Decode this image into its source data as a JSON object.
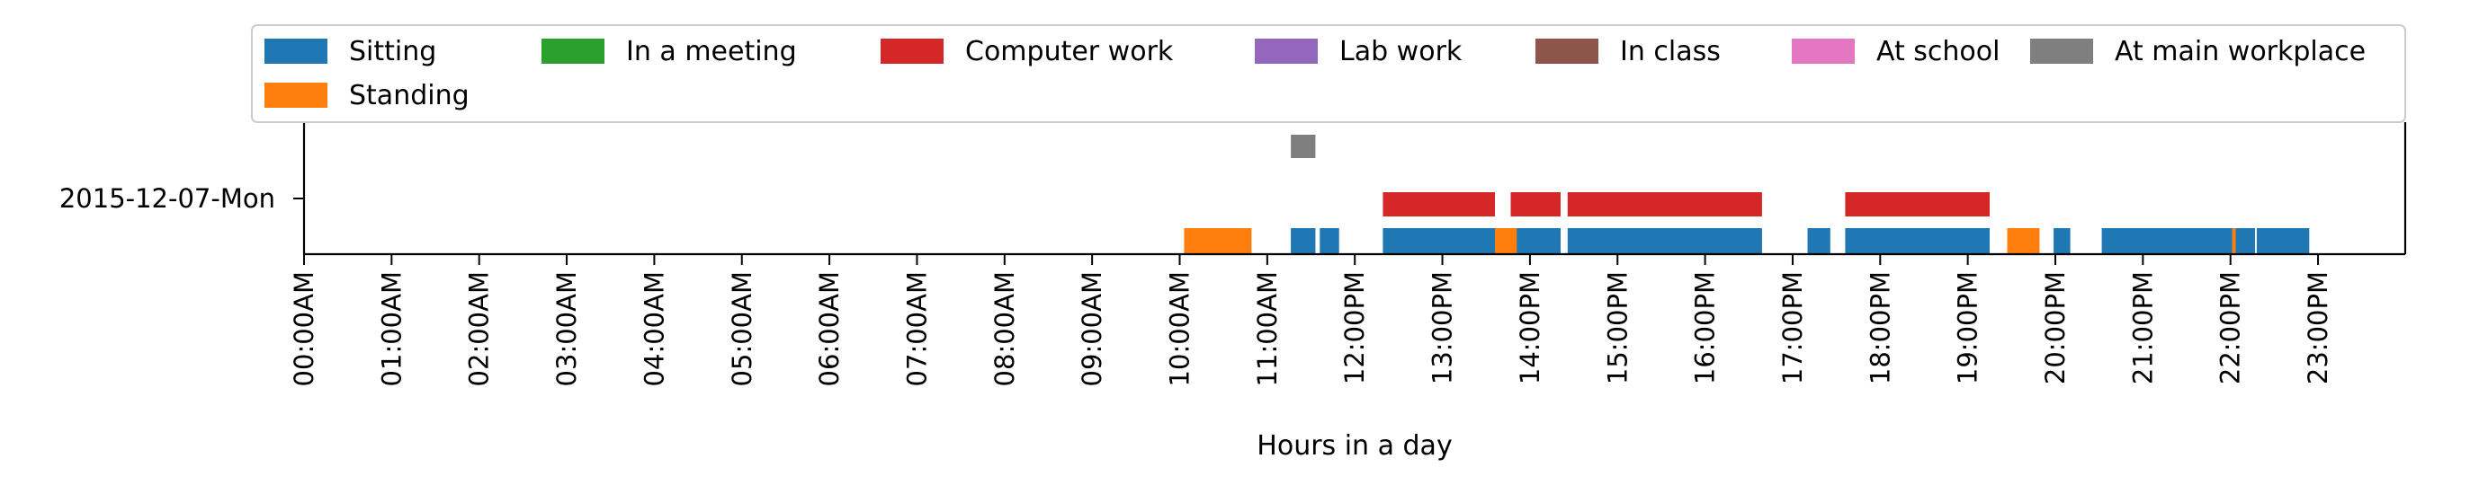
{
  "chart_data": {
    "type": "timeline",
    "title": "",
    "xlabel": "Hours in a day",
    "ylabel": "",
    "xlim": [
      0,
      24
    ],
    "y_category": "2015-12-07-Mon",
    "x_tick_labels": [
      "00:00AM",
      "01:00AM",
      "02:00AM",
      "03:00AM",
      "04:00AM",
      "05:00AM",
      "06:00AM",
      "07:00AM",
      "08:00AM",
      "09:00AM",
      "10:00AM",
      "11:00AM",
      "12:00PM",
      "13:00PM",
      "14:00PM",
      "15:00PM",
      "16:00PM",
      "17:00PM",
      "18:00PM",
      "19:00PM",
      "20:00PM",
      "21:00PM",
      "22:00PM",
      "23:00PM"
    ],
    "legend_placement": "top, 7 columns",
    "series": [
      {
        "name": "Sitting",
        "color": "#1f77b4",
        "lane": 0,
        "intervals": [
          [
            11.27,
            11.55
          ],
          [
            11.6,
            11.82
          ],
          [
            12.32,
            13.6
          ],
          [
            13.78,
            14.35
          ],
          [
            14.43,
            16.65
          ],
          [
            17.17,
            17.43
          ],
          [
            17.6,
            19.25
          ],
          [
            19.98,
            20.17
          ],
          [
            20.53,
            22.28
          ],
          [
            22.3,
            22.9
          ]
        ]
      },
      {
        "name": "Standing",
        "color": "#ff7f0e",
        "lane": 0,
        "intervals": [
          [
            10.05,
            10.82
          ],
          [
            13.6,
            13.85
          ],
          [
            19.45,
            19.82
          ],
          [
            22.02,
            22.06
          ]
        ]
      },
      {
        "name": "In a meeting",
        "color": "#2ca02c",
        "lane": 1,
        "intervals": []
      },
      {
        "name": "Computer work",
        "color": "#d62728",
        "lane": 1,
        "intervals": [
          [
            12.32,
            13.6
          ],
          [
            13.78,
            14.35
          ],
          [
            14.43,
            16.65
          ],
          [
            17.6,
            19.25
          ]
        ]
      },
      {
        "name": "Lab work",
        "color": "#9467bd",
        "lane": 1,
        "intervals": []
      },
      {
        "name": "In class",
        "color": "#8c564b",
        "lane": 2,
        "intervals": []
      },
      {
        "name": "At school",
        "color": "#e377c2",
        "lane": 2,
        "intervals": []
      },
      {
        "name": "At main workplace",
        "color": "#7f7f7f",
        "lane": 2,
        "intervals": [
          [
            11.27,
            11.55
          ]
        ]
      }
    ]
  }
}
